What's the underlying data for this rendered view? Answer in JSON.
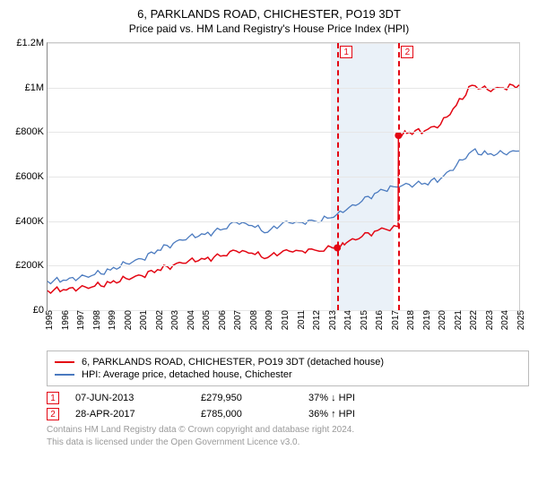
{
  "title": "6, PARKLANDS ROAD, CHICHESTER, PO19 3DT",
  "subtitle": "Price paid vs. HM Land Registry's House Price Index (HPI)",
  "chart": {
    "type": "line",
    "xlim_years": [
      1995,
      2025
    ],
    "ylim": [
      0,
      1200000
    ],
    "yticks": [
      0,
      200000,
      400000,
      600000,
      800000,
      1000000,
      1200000
    ],
    "ytick_labels": [
      "£0",
      "£200K",
      "£400K",
      "£600K",
      "£800K",
      "£1M",
      "£1.2M"
    ],
    "xticks_years": [
      1995,
      1996,
      1997,
      1998,
      1999,
      2000,
      2001,
      2002,
      2003,
      2004,
      2005,
      2006,
      2007,
      2008,
      2009,
      2010,
      2011,
      2012,
      2013,
      2014,
      2015,
      2016,
      2017,
      2018,
      2019,
      2020,
      2021,
      2022,
      2023,
      2024,
      2025
    ],
    "grid_color": "#e6e6e6",
    "axis_color": "#888888",
    "band_years": [
      2013.0,
      2017.0
    ],
    "band_color": "#eaf1f8",
    "vlines": [
      {
        "year": 2013.43,
        "label": "1"
      },
      {
        "year": 2017.32,
        "label": "2"
      }
    ],
    "vline_color": "#e30613",
    "series": [
      {
        "name": "HPI: Average price, detached house, Chichester",
        "color": "#4a7abf",
        "width": 1.3,
        "points_year_value": [
          [
            1995,
            130000
          ],
          [
            1996,
            135000
          ],
          [
            1997,
            145000
          ],
          [
            1998,
            160000
          ],
          [
            1999,
            180000
          ],
          [
            2000,
            210000
          ],
          [
            2001,
            230000
          ],
          [
            2002,
            270000
          ],
          [
            2003,
            300000
          ],
          [
            2004,
            330000
          ],
          [
            2005,
            340000
          ],
          [
            2006,
            360000
          ],
          [
            2007,
            395000
          ],
          [
            2008,
            380000
          ],
          [
            2009,
            350000
          ],
          [
            2010,
            395000
          ],
          [
            2011,
            395000
          ],
          [
            2012,
            400000
          ],
          [
            2013,
            415000
          ],
          [
            2014,
            450000
          ],
          [
            2015,
            490000
          ],
          [
            2016,
            530000
          ],
          [
            2017,
            555000
          ],
          [
            2018,
            565000
          ],
          [
            2019,
            570000
          ],
          [
            2020,
            590000
          ],
          [
            2021,
            650000
          ],
          [
            2022,
            715000
          ],
          [
            2023,
            700000
          ],
          [
            2024,
            705000
          ],
          [
            2025,
            715000
          ]
        ]
      },
      {
        "name": "6, PARKLANDS ROAD, CHICHESTER, PO19 3DT (detached house)",
        "color": "#e30613",
        "width": 1.5,
        "points_year_value": [
          [
            1995,
            88000
          ],
          [
            1996,
            92000
          ],
          [
            1997,
            98000
          ],
          [
            1998,
            108000
          ],
          [
            1999,
            122000
          ],
          [
            2000,
            142000
          ],
          [
            2001,
            155000
          ],
          [
            2002,
            182000
          ],
          [
            2003,
            202000
          ],
          [
            2004,
            223000
          ],
          [
            2005,
            229000
          ],
          [
            2006,
            243000
          ],
          [
            2007,
            266000
          ],
          [
            2008,
            256000
          ],
          [
            2009,
            236000
          ],
          [
            2010,
            267000
          ],
          [
            2011,
            267000
          ],
          [
            2012,
            270000
          ],
          [
            2013.43,
            279950
          ],
          [
            2014,
            302000
          ],
          [
            2015,
            331000
          ],
          [
            2016,
            358000
          ],
          [
            2017.3,
            375000
          ],
          [
            2017.32,
            785000
          ],
          [
            2018,
            800000
          ],
          [
            2019,
            806000
          ],
          [
            2020,
            835000
          ],
          [
            2021,
            920000
          ],
          [
            2022,
            1010000
          ],
          [
            2023,
            990000
          ],
          [
            2024,
            998000
          ],
          [
            2025,
            1012000
          ]
        ]
      }
    ],
    "dots": [
      {
        "year": 2013.43,
        "value": 279950,
        "color": "#e30613"
      },
      {
        "year": 2017.32,
        "value": 785000,
        "color": "#e30613"
      }
    ]
  },
  "legend": {
    "items": [
      {
        "color": "#e30613",
        "label": "6, PARKLANDS ROAD, CHICHESTER, PO19 3DT (detached house)"
      },
      {
        "color": "#4a7abf",
        "label": "HPI: Average price, detached house, Chichester"
      }
    ]
  },
  "markers": [
    {
      "num": "1",
      "date": "07-JUN-2013",
      "price": "£279,950",
      "pct": "37% ↓ HPI"
    },
    {
      "num": "2",
      "date": "28-APR-2017",
      "price": "£785,000",
      "pct": "36% ↑ HPI"
    }
  ],
  "footnote_line1": "Contains HM Land Registry data © Crown copyright and database right 2024.",
  "footnote_line2": "This data is licensed under the Open Government Licence v3.0."
}
